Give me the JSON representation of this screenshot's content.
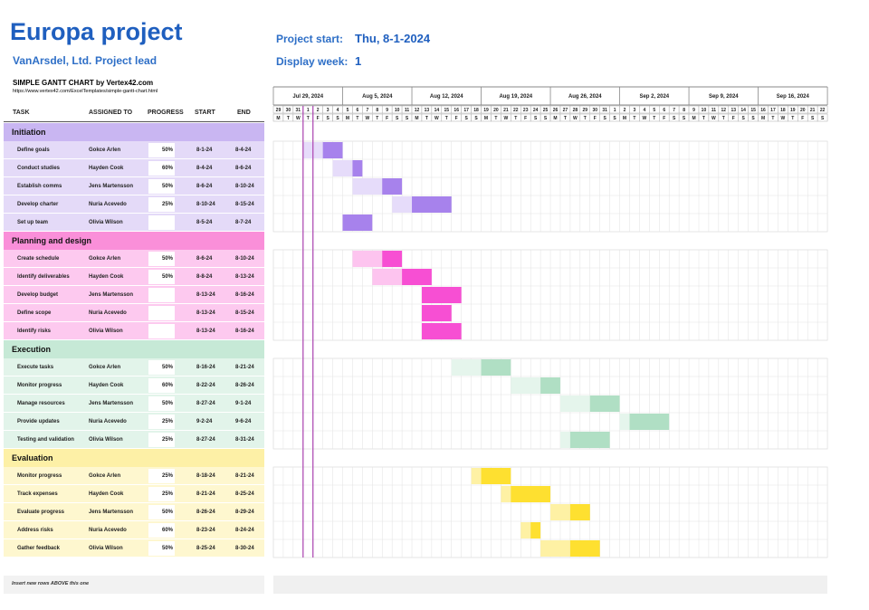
{
  "header": {
    "title": "Europa project",
    "company": "VanArsdel, Ltd.",
    "lead": "Project lead",
    "project_start_label": "Project start:",
    "project_start_value": "Thu, 8-1-2024",
    "display_week_label": "Display week:",
    "display_week_value": "1",
    "credit": "SIMPLE GANTT CHART by Vertex42.com",
    "credit_url": "https://www.vertex42.com/ExcelTemplates/simple-gantt-chart.html"
  },
  "columns": {
    "task": "TASK",
    "assigned": "ASSIGNED TO",
    "progress": "PROGRESS",
    "start": "START",
    "end": "END"
  },
  "timeline": {
    "weeks": [
      "Jul 29, 2024",
      "Aug 5, 2024",
      "Aug 12, 2024",
      "Aug 19, 2024",
      "Aug 26, 2024",
      "Sep 2, 2024",
      "Sep 9, 2024",
      "Sep 16, 2024"
    ],
    "days": [
      "29",
      "30",
      "31",
      "1",
      "2",
      "3",
      "4",
      "5",
      "6",
      "7",
      "8",
      "9",
      "10",
      "11",
      "12",
      "13",
      "14",
      "15",
      "16",
      "17",
      "18",
      "19",
      "20",
      "21",
      "22",
      "23",
      "24",
      "25",
      "26",
      "27",
      "28",
      "29",
      "30",
      "31",
      "1",
      "2",
      "3",
      "4",
      "5",
      "6",
      "7",
      "8",
      "9",
      "10",
      "11",
      "12",
      "13",
      "14",
      "15",
      "16",
      "17",
      "18",
      "19",
      "20",
      "21",
      "22"
    ],
    "weekdays": [
      "M",
      "T",
      "W",
      "T",
      "F",
      "S",
      "S"
    ],
    "today_index": 3
  },
  "phases": [
    {
      "name": "Initiation",
      "color": "#c9b6f2",
      "row_color": "#e4daf8",
      "bar": "#a782ec",
      "bar_light": "#e6dcfa",
      "tasks": [
        {
          "name": "Define goals",
          "assigned": "Gokce Arlen",
          "progress": "50%",
          "start": "8-1-24",
          "end": "8-4-24"
        },
        {
          "name": "Conduct studies",
          "assigned": "Hayden Cook",
          "progress": "60%",
          "start": "8-4-24",
          "end": "8-6-24"
        },
        {
          "name": "Establish comms",
          "assigned": "Jens Martensson",
          "progress": "50%",
          "start": "8-6-24",
          "end": "8-10-24"
        },
        {
          "name": "Develop charter",
          "assigned": "Nuria Acevedo",
          "progress": "25%",
          "start": "8-10-24",
          "end": "8-15-24"
        },
        {
          "name": "Set up team",
          "assigned": "Olivia Wilson",
          "progress": "",
          "start": "8-5-24",
          "end": "8-7-24"
        }
      ]
    },
    {
      "name": "Planning and design",
      "color": "#fa8fd9",
      "row_color": "#fdc9ef",
      "bar": "#f74fd3",
      "bar_light": "#fdc4ef",
      "tasks": [
        {
          "name": "Create schedule",
          "assigned": "Gokce Arlen",
          "progress": "50%",
          "start": "8-6-24",
          "end": "8-10-24"
        },
        {
          "name": "Identify deliverables",
          "assigned": "Hayden Cook",
          "progress": "50%",
          "start": "8-8-24",
          "end": "8-13-24"
        },
        {
          "name": "Develop budget",
          "assigned": "Jens Martensson",
          "progress": "",
          "start": "8-13-24",
          "end": "8-16-24"
        },
        {
          "name": "Define scope",
          "assigned": "Nuria Acevedo",
          "progress": "",
          "start": "8-13-24",
          "end": "8-15-24"
        },
        {
          "name": "Identify risks",
          "assigned": "Olivia Wilson",
          "progress": "",
          "start": "8-13-24",
          "end": "8-16-24"
        }
      ]
    },
    {
      "name": "Execution",
      "color": "#c6e9d6",
      "row_color": "#e2f4ea",
      "bar": "#b0dfc4",
      "bar_light": "#e5f5ec",
      "tasks": [
        {
          "name": "Execute tasks",
          "assigned": "Gokce Arlen",
          "progress": "50%",
          "start": "8-16-24",
          "end": "8-21-24"
        },
        {
          "name": "Monitor progress",
          "assigned": "Hayden Cook",
          "progress": "60%",
          "start": "8-22-24",
          "end": "8-26-24"
        },
        {
          "name": "Manage resources",
          "assigned": "Jens Martensson",
          "progress": "50%",
          "start": "8-27-24",
          "end": "9-1-24"
        },
        {
          "name": "Provide updates",
          "assigned": "Nuria Acevedo",
          "progress": "25%",
          "start": "9-2-24",
          "end": "9-6-24"
        },
        {
          "name": "Testing and validation",
          "assigned": "Olivia Wilson",
          "progress": "25%",
          "start": "8-27-24",
          "end": "8-31-24"
        }
      ]
    },
    {
      "name": "Evaluation",
      "color": "#fdf0a6",
      "row_color": "#fef7cf",
      "bar": "#fee030",
      "bar_light": "#fef1a4",
      "tasks": [
        {
          "name": "Monitor progress",
          "assigned": "Gokce Arlen",
          "progress": "25%",
          "start": "8-18-24",
          "end": "8-21-24"
        },
        {
          "name": "Track expenses",
          "assigned": "Hayden Cook",
          "progress": "25%",
          "start": "8-21-24",
          "end": "8-25-24"
        },
        {
          "name": "Evaluate progress",
          "assigned": "Jens Martensson",
          "progress": "50%",
          "start": "8-26-24",
          "end": "8-29-24"
        },
        {
          "name": "Address risks",
          "assigned": "Nuria Acevedo",
          "progress": "60%",
          "start": "8-23-24",
          "end": "8-24-24"
        },
        {
          "name": "Gather feedback",
          "assigned": "Olivia Wilson",
          "progress": "50%",
          "start": "8-25-24",
          "end": "8-30-24"
        }
      ]
    }
  ],
  "footer": {
    "insert_note": "Insert new rows ABOVE this one"
  }
}
